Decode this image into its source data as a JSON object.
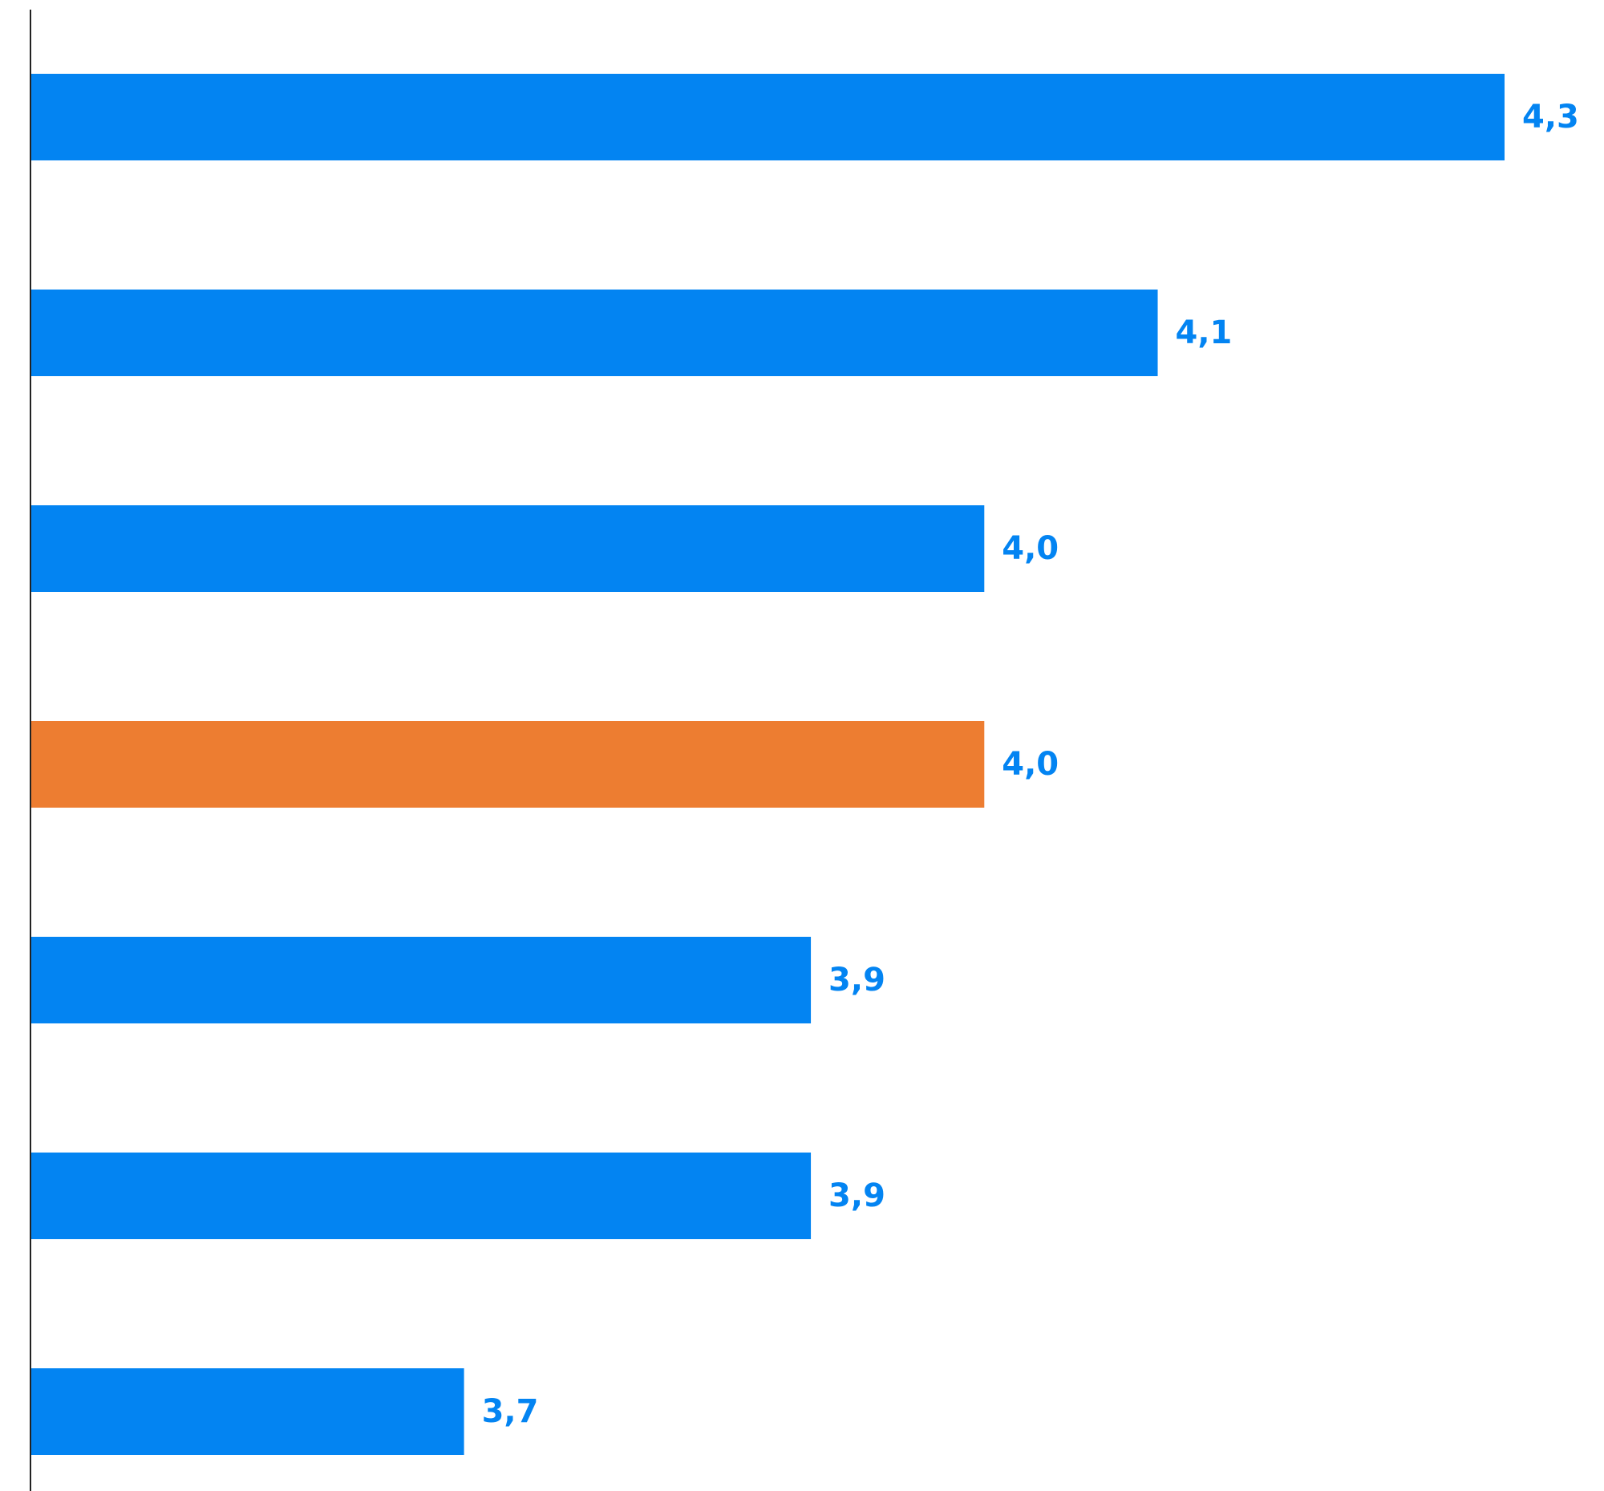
{
  "chart_data": {
    "type": "bar",
    "orientation": "horizontal",
    "values": [
      4.3,
      4.1,
      4.0,
      4.0,
      3.9,
      3.9,
      3.7
    ],
    "labels": [
      "4,3",
      "4,1",
      "4,0",
      "4,0",
      "3,9",
      "3,9",
      "3,7"
    ],
    "highlight_index": 3,
    "xlim": [
      3.45,
      4.3
    ],
    "grid": false,
    "legend": "none",
    "colors": {
      "bar": "#0384f2",
      "highlight": "#ed7d31",
      "label": "#0384f2",
      "axis": "#222222"
    }
  }
}
